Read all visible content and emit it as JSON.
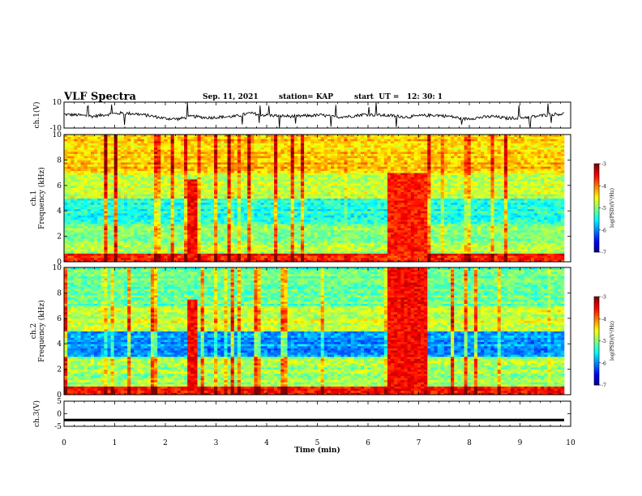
{
  "header": {
    "title": "VLF Spectra",
    "date": "Sep. 11, 2021",
    "station": "station= KAP",
    "start": "start  UT =   12: 30: 1"
  },
  "chart_data": [
    {
      "type": "line",
      "panel": "ch1-waveform",
      "ylabel": "ch.1(V)",
      "ylim": [
        -10,
        10
      ],
      "y_ticks": [
        "10",
        "-10"
      ],
      "xlim": [
        0,
        10
      ],
      "x_extent_min": [
        0,
        9.87
      ],
      "series": [
        {
          "values": [
            0.5,
            0.0,
            -1.0,
            0.5,
            1.5,
            1.0,
            -0.5,
            -2.5,
            -3.0,
            -1.0,
            -2.0,
            -1.5,
            -1.0,
            1.5,
            0.0,
            -0.5,
            -1.0,
            -0.5,
            0.0,
            -1.5,
            -1.0,
            0.5,
            0.0,
            -0.5,
            -1.5,
            -0.5,
            0.0,
            -1.0,
            -3.0,
            -2.0,
            -1.0,
            -2.5,
            -2.0,
            -1.0,
            0.5,
            1.0
          ]
        }
      ]
    },
    {
      "type": "heatmap",
      "panel": "ch1-spectrogram",
      "ylabel": "ch.1\nFrequency (kHz)",
      "ylim": [
        0,
        10
      ],
      "y_ticks": [
        "0",
        "2",
        "4",
        "6",
        "8",
        "10"
      ],
      "xlim": [
        0,
        10
      ],
      "x_extent_min": [
        0,
        9.87
      ],
      "colorbar": {
        "range": [
          -7,
          -3
        ],
        "ticks": [
          "-3",
          "-4",
          "-5",
          "-6",
          "-7"
        ],
        "label": "log(PSD)(V²/Hz)",
        "colormap": "jet"
      },
      "features": [
        {
          "kind": "burst",
          "t_min": [
            2.45,
            2.6
          ],
          "f_khz": [
            0,
            6.5
          ],
          "level": -3.5
        },
        {
          "kind": "burst",
          "t_min": [
            6.4,
            7.2
          ],
          "f_khz": [
            0.5,
            7.0
          ],
          "level": -3.6
        },
        {
          "kind": "quiet_band",
          "f_khz": [
            3.0,
            5.0
          ],
          "level": -5.6
        }
      ]
    },
    {
      "type": "heatmap",
      "panel": "ch2-spectrogram",
      "ylabel": "ch.2\nFrequency (kHz)",
      "ylim": [
        0,
        10
      ],
      "y_ticks": [
        "0",
        "2",
        "4",
        "6",
        "8",
        "10"
      ],
      "xlim": [
        0,
        10
      ],
      "x_extent_min": [
        0,
        9.87
      ],
      "colorbar": {
        "range": [
          -7,
          -3
        ],
        "ticks": [
          "-3",
          "-4",
          "-5",
          "-6",
          "-7"
        ],
        "label": "log(PSD)(V²/Hz)",
        "colormap": "jet"
      },
      "features": [
        {
          "kind": "burst",
          "t_min": [
            2.45,
            2.6
          ],
          "f_khz": [
            0,
            7.5
          ],
          "level": -3.5
        },
        {
          "kind": "burst",
          "t_min": [
            6.4,
            7.2
          ],
          "f_khz": [
            0.5,
            10.0
          ],
          "level": -3.5
        },
        {
          "kind": "quiet_band",
          "f_khz": [
            3.0,
            4.6
          ],
          "level": -6.2
        }
      ]
    },
    {
      "type": "line",
      "panel": "ch3-waveform",
      "ylabel": "ch.3(V)",
      "ylim": [
        -5,
        5
      ],
      "y_ticks": [
        "5",
        "0",
        "-5"
      ],
      "xlim": [
        0,
        10
      ],
      "x_extent_min": [
        0,
        9.87
      ],
      "series": [
        {
          "values": [
            -2.5,
            -2.5,
            -2.5,
            -2.5
          ]
        }
      ],
      "band": [
        -3.0,
        -2.0
      ]
    }
  ],
  "xaxis": {
    "label": "Time (min)",
    "ticks": [
      "0",
      "1",
      "2",
      "3",
      "4",
      "5",
      "6",
      "7",
      "8",
      "9",
      "10"
    ]
  }
}
